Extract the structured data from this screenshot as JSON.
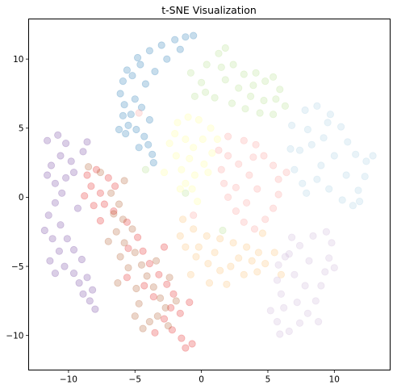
{
  "chart_data": {
    "type": "scatter",
    "title": "t-SNE Visualization",
    "xlabel": "",
    "ylabel": "",
    "xlim": [
      -13.0,
      14.2
    ],
    "ylim": [
      -12.5,
      12.9
    ],
    "x_ticks": [
      -10,
      -5,
      0,
      5,
      10
    ],
    "y_ticks": [
      -10,
      -5,
      0,
      5,
      10
    ],
    "x_tick_labels": [
      "−10",
      "−5",
      "0",
      "5",
      "10"
    ],
    "y_tick_labels": [
      "−10",
      "−5",
      "0",
      "5",
      "10"
    ],
    "grid": false,
    "legend": "none",
    "point_opacity": 0.25,
    "series": [
      {
        "color": "#1f78b4",
        "points": [
          [
            -5.6,
            9.2
          ],
          [
            -4.8,
            10.1
          ],
          [
            -3.9,
            10.6
          ],
          [
            -3.0,
            11.0
          ],
          [
            -2.0,
            11.4
          ],
          [
            -1.2,
            11.6
          ],
          [
            -0.6,
            11.7
          ],
          [
            -5.9,
            8.4
          ],
          [
            -6.1,
            7.5
          ],
          [
            -5.8,
            6.7
          ],
          [
            -5.3,
            6.0
          ],
          [
            -5.5,
            5.2
          ],
          [
            -5.7,
            4.6
          ],
          [
            -4.9,
            4.9
          ],
          [
            -4.3,
            4.4
          ],
          [
            -4.0,
            3.8
          ],
          [
            -3.7,
            3.1
          ],
          [
            -3.6,
            2.5
          ],
          [
            -3.9,
            5.6
          ],
          [
            -4.5,
            6.5
          ],
          [
            -5.0,
            7.1
          ],
          [
            -4.2,
            8.2
          ],
          [
            -3.5,
            9.1
          ],
          [
            -2.6,
            10.0
          ],
          [
            -1.6,
            10.7
          ],
          [
            -4.6,
            9.6
          ],
          [
            -5.2,
            8.8
          ],
          [
            -5.9,
            5.9
          ],
          [
            -6.2,
            4.9
          ],
          [
            -4.7,
            3.6
          ]
        ]
      },
      {
        "color": "#a6cee3",
        "points": [
          [
            6.8,
            5.2
          ],
          [
            7.8,
            6.3
          ],
          [
            8.7,
            6.6
          ],
          [
            9.7,
            6.0
          ],
          [
            10.5,
            5.1
          ],
          [
            11.0,
            4.0
          ],
          [
            11.6,
            3.1
          ],
          [
            12.4,
            2.6
          ],
          [
            12.9,
            3.0
          ],
          [
            12.3,
            1.5
          ],
          [
            11.8,
            0.5
          ],
          [
            11.4,
            -0.6
          ],
          [
            10.6,
            -0.2
          ],
          [
            9.6,
            0.6
          ],
          [
            8.7,
            1.3
          ],
          [
            7.6,
            1.0
          ],
          [
            7.0,
            2.0
          ],
          [
            7.4,
            3.4
          ],
          [
            8.3,
            3.8
          ],
          [
            9.2,
            4.3
          ],
          [
            10.0,
            3.0
          ],
          [
            9.0,
            2.3
          ],
          [
            8.0,
            4.9
          ],
          [
            6.7,
            3.5
          ],
          [
            10.9,
            1.6
          ],
          [
            11.9,
            -0.3
          ],
          [
            7.9,
            0.3
          ],
          [
            9.5,
            5.4
          ]
        ]
      },
      {
        "color": "#b2df8a",
        "points": [
          [
            -0.8,
            9.0
          ],
          [
            0.4,
            9.6
          ],
          [
            1.3,
            10.4
          ],
          [
            1.8,
            10.8
          ],
          [
            2.4,
            9.6
          ],
          [
            3.2,
            8.9
          ],
          [
            4.1,
            9.0
          ],
          [
            4.8,
            8.4
          ],
          [
            5.4,
            8.7
          ],
          [
            5.9,
            7.8
          ],
          [
            5.6,
            7.1
          ],
          [
            4.7,
            7.0
          ],
          [
            3.7,
            7.3
          ],
          [
            2.8,
            7.9
          ],
          [
            1.8,
            8.5
          ],
          [
            1.0,
            7.2
          ],
          [
            0.3,
            7.6
          ],
          [
            2.3,
            6.8
          ],
          [
            3.3,
            6.4
          ],
          [
            4.4,
            6.1
          ],
          [
            5.4,
            6.0
          ],
          [
            6.3,
            6.6
          ],
          [
            1.5,
            9.4
          ],
          [
            0.0,
            8.3
          ],
          [
            -0.5,
            7.3
          ],
          [
            3.9,
            8.1
          ],
          [
            -1.2,
            0.3
          ],
          [
            -4.2,
            2.0
          ],
          [
            1.6,
            -2.4
          ]
        ]
      },
      {
        "color": "#ffff99",
        "points": [
          [
            -1.8,
            5.4
          ],
          [
            -1.0,
            5.8
          ],
          [
            -0.2,
            5.6
          ],
          [
            0.7,
            5.0
          ],
          [
            1.2,
            4.2
          ],
          [
            0.8,
            3.2
          ],
          [
            0.2,
            2.4
          ],
          [
            -0.5,
            1.6
          ],
          [
            -1.2,
            1.0
          ],
          [
            -1.5,
            2.0
          ],
          [
            -1.9,
            3.0
          ],
          [
            -2.4,
            3.9
          ],
          [
            -2.0,
            4.6
          ],
          [
            -1.2,
            4.2
          ],
          [
            -0.6,
            3.6
          ],
          [
            0.1,
            4.2
          ],
          [
            -0.9,
            2.8
          ],
          [
            -1.6,
            0.6
          ],
          [
            -0.7,
            0.6
          ],
          [
            0.5,
            1.8
          ],
          [
            -2.8,
            1.8
          ],
          [
            -0.3,
            -0.3
          ]
        ]
      },
      {
        "color": "#fb9a99",
        "points": [
          [
            2.0,
            4.4
          ],
          [
            3.2,
            4.1
          ],
          [
            4.1,
            3.8
          ],
          [
            4.7,
            3.0
          ],
          [
            5.4,
            2.3
          ],
          [
            5.8,
            1.3
          ],
          [
            5.8,
            0.2
          ],
          [
            5.4,
            -0.8
          ],
          [
            4.8,
            -1.6
          ],
          [
            4.0,
            -2.3
          ],
          [
            3.2,
            -1.8
          ],
          [
            2.6,
            -1.0
          ],
          [
            2.0,
            0.0
          ],
          [
            1.7,
            1.0
          ],
          [
            1.5,
            2.0
          ],
          [
            2.0,
            3.0
          ],
          [
            2.8,
            2.4
          ],
          [
            3.6,
            1.6
          ],
          [
            4.2,
            0.6
          ],
          [
            3.4,
            -0.4
          ],
          [
            2.6,
            0.7
          ],
          [
            3.9,
            2.9
          ],
          [
            6.4,
            1.8
          ],
          [
            1.3,
            3.4
          ],
          [
            -4.7,
            6.1
          ],
          [
            -0.6,
            -1.3
          ]
        ]
      },
      {
        "color": "#fdbf6f",
        "points": [
          [
            -1.4,
            -1.6
          ],
          [
            -0.6,
            -2.3
          ],
          [
            0.4,
            -2.8
          ],
          [
            1.4,
            -3.0
          ],
          [
            2.4,
            -3.3
          ],
          [
            3.4,
            -3.6
          ],
          [
            4.3,
            -4.0
          ],
          [
            4.8,
            -4.8
          ],
          [
            4.2,
            -5.4
          ],
          [
            3.2,
            -5.6
          ],
          [
            2.2,
            -5.0
          ],
          [
            1.4,
            -5.3
          ],
          [
            0.5,
            -4.8
          ],
          [
            -0.4,
            -4.3
          ],
          [
            -1.2,
            -3.6
          ],
          [
            -1.6,
            -2.8
          ],
          [
            -0.2,
            -3.6
          ],
          [
            1.0,
            -4.0
          ],
          [
            2.8,
            -4.4
          ],
          [
            3.8,
            -4.6
          ],
          [
            5.5,
            -4.0
          ],
          [
            -0.8,
            -5.6
          ],
          [
            0.6,
            -6.2
          ],
          [
            1.9,
            -6.3
          ],
          [
            4.6,
            -2.6
          ],
          [
            6.0,
            -5.6
          ]
        ]
      },
      {
        "color": "#cab2d6",
        "points": [
          [
            5.8,
            -4.9
          ],
          [
            6.6,
            -4.1
          ],
          [
            7.4,
            -3.5
          ],
          [
            8.4,
            -2.8
          ],
          [
            9.4,
            -2.5
          ],
          [
            9.8,
            -3.3
          ],
          [
            9.6,
            -4.4
          ],
          [
            9.3,
            -5.4
          ],
          [
            9.0,
            -6.4
          ],
          [
            8.6,
            -7.5
          ],
          [
            8.0,
            -8.4
          ],
          [
            7.4,
            -9.1
          ],
          [
            6.6,
            -9.7
          ],
          [
            5.9,
            -9.9
          ],
          [
            5.7,
            -9.0
          ],
          [
            6.2,
            -8.0
          ],
          [
            6.0,
            -7.0
          ],
          [
            5.7,
            -6.0
          ],
          [
            7.0,
            -5.6
          ],
          [
            7.8,
            -6.4
          ],
          [
            8.1,
            -4.6
          ],
          [
            7.2,
            -7.6
          ],
          [
            6.8,
            -2.9
          ],
          [
            10.0,
            -5.1
          ],
          [
            5.2,
            -8.2
          ],
          [
            6.3,
            -4.3
          ],
          [
            8.8,
            -9.0
          ]
        ]
      },
      {
        "color": "#6a3d9a",
        "points": [
          [
            -10.8,
            4.5
          ],
          [
            -10.2,
            3.9
          ],
          [
            -10.6,
            3.0
          ],
          [
            -11.3,
            2.3
          ],
          [
            -11.6,
            1.6
          ],
          [
            -11.0,
            1.0
          ],
          [
            -10.2,
            1.4
          ],
          [
            -10.5,
            0.3
          ],
          [
            -11.0,
            -0.4
          ],
          [
            -11.5,
            -1.3
          ],
          [
            -11.8,
            -2.4
          ],
          [
            -11.2,
            -3.0
          ],
          [
            -10.6,
            -2.0
          ],
          [
            -10.1,
            -3.0
          ],
          [
            -10.7,
            -3.9
          ],
          [
            -11.4,
            -4.6
          ],
          [
            -11.0,
            -5.5
          ],
          [
            -10.3,
            -5.0
          ],
          [
            -9.6,
            -5.5
          ],
          [
            -9.2,
            -6.2
          ],
          [
            -8.9,
            -7.0
          ],
          [
            -8.4,
            -7.5
          ],
          [
            -8.0,
            -8.1
          ],
          [
            -9.0,
            -4.5
          ],
          [
            -9.6,
            -3.8
          ],
          [
            -8.6,
            -5.8
          ],
          [
            -9.8,
            2.6
          ],
          [
            -8.9,
            3.3
          ],
          [
            -9.6,
            1.8
          ],
          [
            -9.3,
            -0.8
          ],
          [
            -8.2,
            -6.7
          ],
          [
            -11.6,
            4.1
          ],
          [
            -8.6,
            4.0
          ]
        ]
      },
      {
        "color": "#e31a1c",
        "points": [
          [
            -8.6,
            1.6
          ],
          [
            -7.9,
            2.0
          ],
          [
            -7.0,
            1.4
          ],
          [
            -8.3,
            0.8
          ],
          [
            -7.6,
            0.3
          ],
          [
            -8.1,
            -0.6
          ],
          [
            -7.3,
            -0.5
          ],
          [
            -6.5,
            0.8
          ],
          [
            -6.6,
            -1.0
          ],
          [
            -5.6,
            -1.8
          ],
          [
            -4.8,
            -2.9
          ],
          [
            -4.4,
            -3.9
          ],
          [
            -3.9,
            -4.8
          ],
          [
            -3.2,
            -5.6
          ],
          [
            -2.6,
            -6.3
          ],
          [
            -2.1,
            -7.0
          ],
          [
            -2.3,
            -8.0
          ],
          [
            -2.8,
            -8.8
          ],
          [
            -2.2,
            -9.6
          ],
          [
            -1.5,
            -10.2
          ],
          [
            -1.2,
            -10.9
          ],
          [
            -0.7,
            -10.6
          ],
          [
            -5.5,
            -3.7
          ],
          [
            -3.6,
            -7.2
          ],
          [
            -4.3,
            -6.4
          ],
          [
            -1.6,
            -8.4
          ],
          [
            -3.5,
            -9.8
          ],
          [
            -0.9,
            -7.6
          ],
          [
            -7.6,
            -1.7
          ],
          [
            -2.8,
            -3.6
          ],
          [
            -5.6,
            -5.8
          ],
          [
            -8.8,
            0.1
          ]
        ]
      },
      {
        "color": "#b15928",
        "points": [
          [
            -7.6,
            1.8
          ],
          [
            -6.8,
            0.3
          ],
          [
            -6.2,
            -0.5
          ],
          [
            -5.9,
            -1.6
          ],
          [
            -6.4,
            -2.5
          ],
          [
            -5.8,
            -3.3
          ],
          [
            -5.0,
            -4.0
          ],
          [
            -4.5,
            -4.9
          ],
          [
            -4.1,
            -5.7
          ],
          [
            -3.6,
            -6.5
          ],
          [
            -3.1,
            -7.3
          ],
          [
            -2.7,
            -8.0
          ],
          [
            -3.3,
            -8.6
          ],
          [
            -3.9,
            -9.0
          ],
          [
            -4.4,
            -9.5
          ],
          [
            -5.0,
            -8.6
          ],
          [
            -4.7,
            -7.7
          ],
          [
            -4.9,
            -6.6
          ],
          [
            -5.5,
            -5.1
          ],
          [
            -6.1,
            -4.3
          ],
          [
            -7.0,
            -3.2
          ],
          [
            -6.6,
            -1.2
          ],
          [
            -3.4,
            -4.6
          ],
          [
            -2.4,
            -5.8
          ],
          [
            -1.9,
            -7.5
          ],
          [
            -2.5,
            -9.3
          ],
          [
            -5.8,
            1.2
          ],
          [
            -8.5,
            2.2
          ],
          [
            -6.3,
            -6.2
          ],
          [
            -5.2,
            -2.3
          ]
        ]
      }
    ]
  }
}
